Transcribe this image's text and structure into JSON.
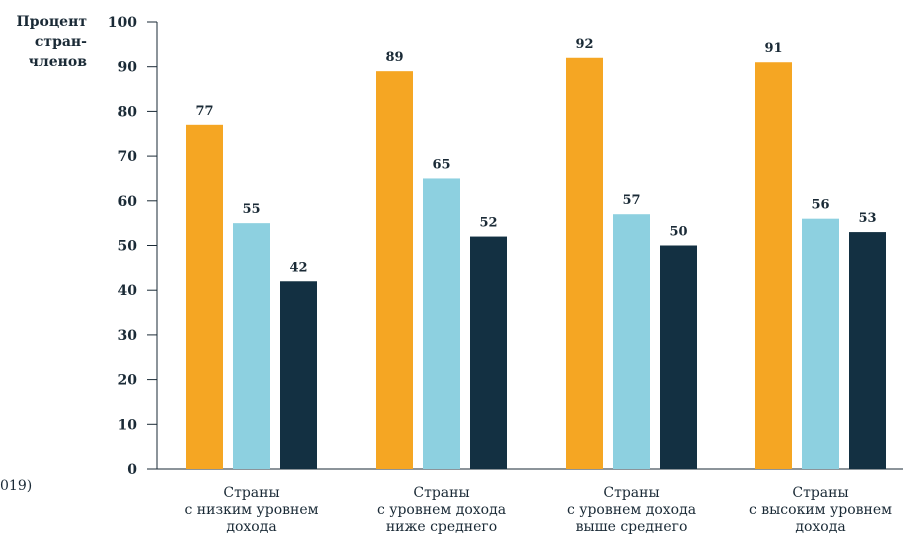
{
  "side_note": "019)",
  "chart_data": {
    "type": "bar",
    "ylabel_lines": [
      "Процент",
      "стран-",
      "членов"
    ],
    "ylim": [
      0,
      100
    ],
    "yticks": [
      0,
      10,
      20,
      30,
      40,
      50,
      60,
      70,
      80,
      90,
      100
    ],
    "grid": false,
    "categories": [
      {
        "lines": [
          "Страны",
          "с низким уровнем",
          "дохода"
        ]
      },
      {
        "lines": [
          "Страны",
          "с уровнем дохода",
          "ниже среднего"
        ]
      },
      {
        "lines": [
          "Страны",
          "с уровнем дохода",
          "выше среднего"
        ]
      },
      {
        "lines": [
          "Страны",
          "с высоким уровнем",
          "дохода"
        ]
      }
    ],
    "series": [
      {
        "values": [
          77,
          89,
          92,
          91
        ],
        "color": "#f5a623"
      },
      {
        "values": [
          55,
          65,
          57,
          56
        ],
        "color": "#8dd0e0"
      },
      {
        "values": [
          42,
          52,
          50,
          53
        ],
        "color": "#133042"
      }
    ]
  }
}
